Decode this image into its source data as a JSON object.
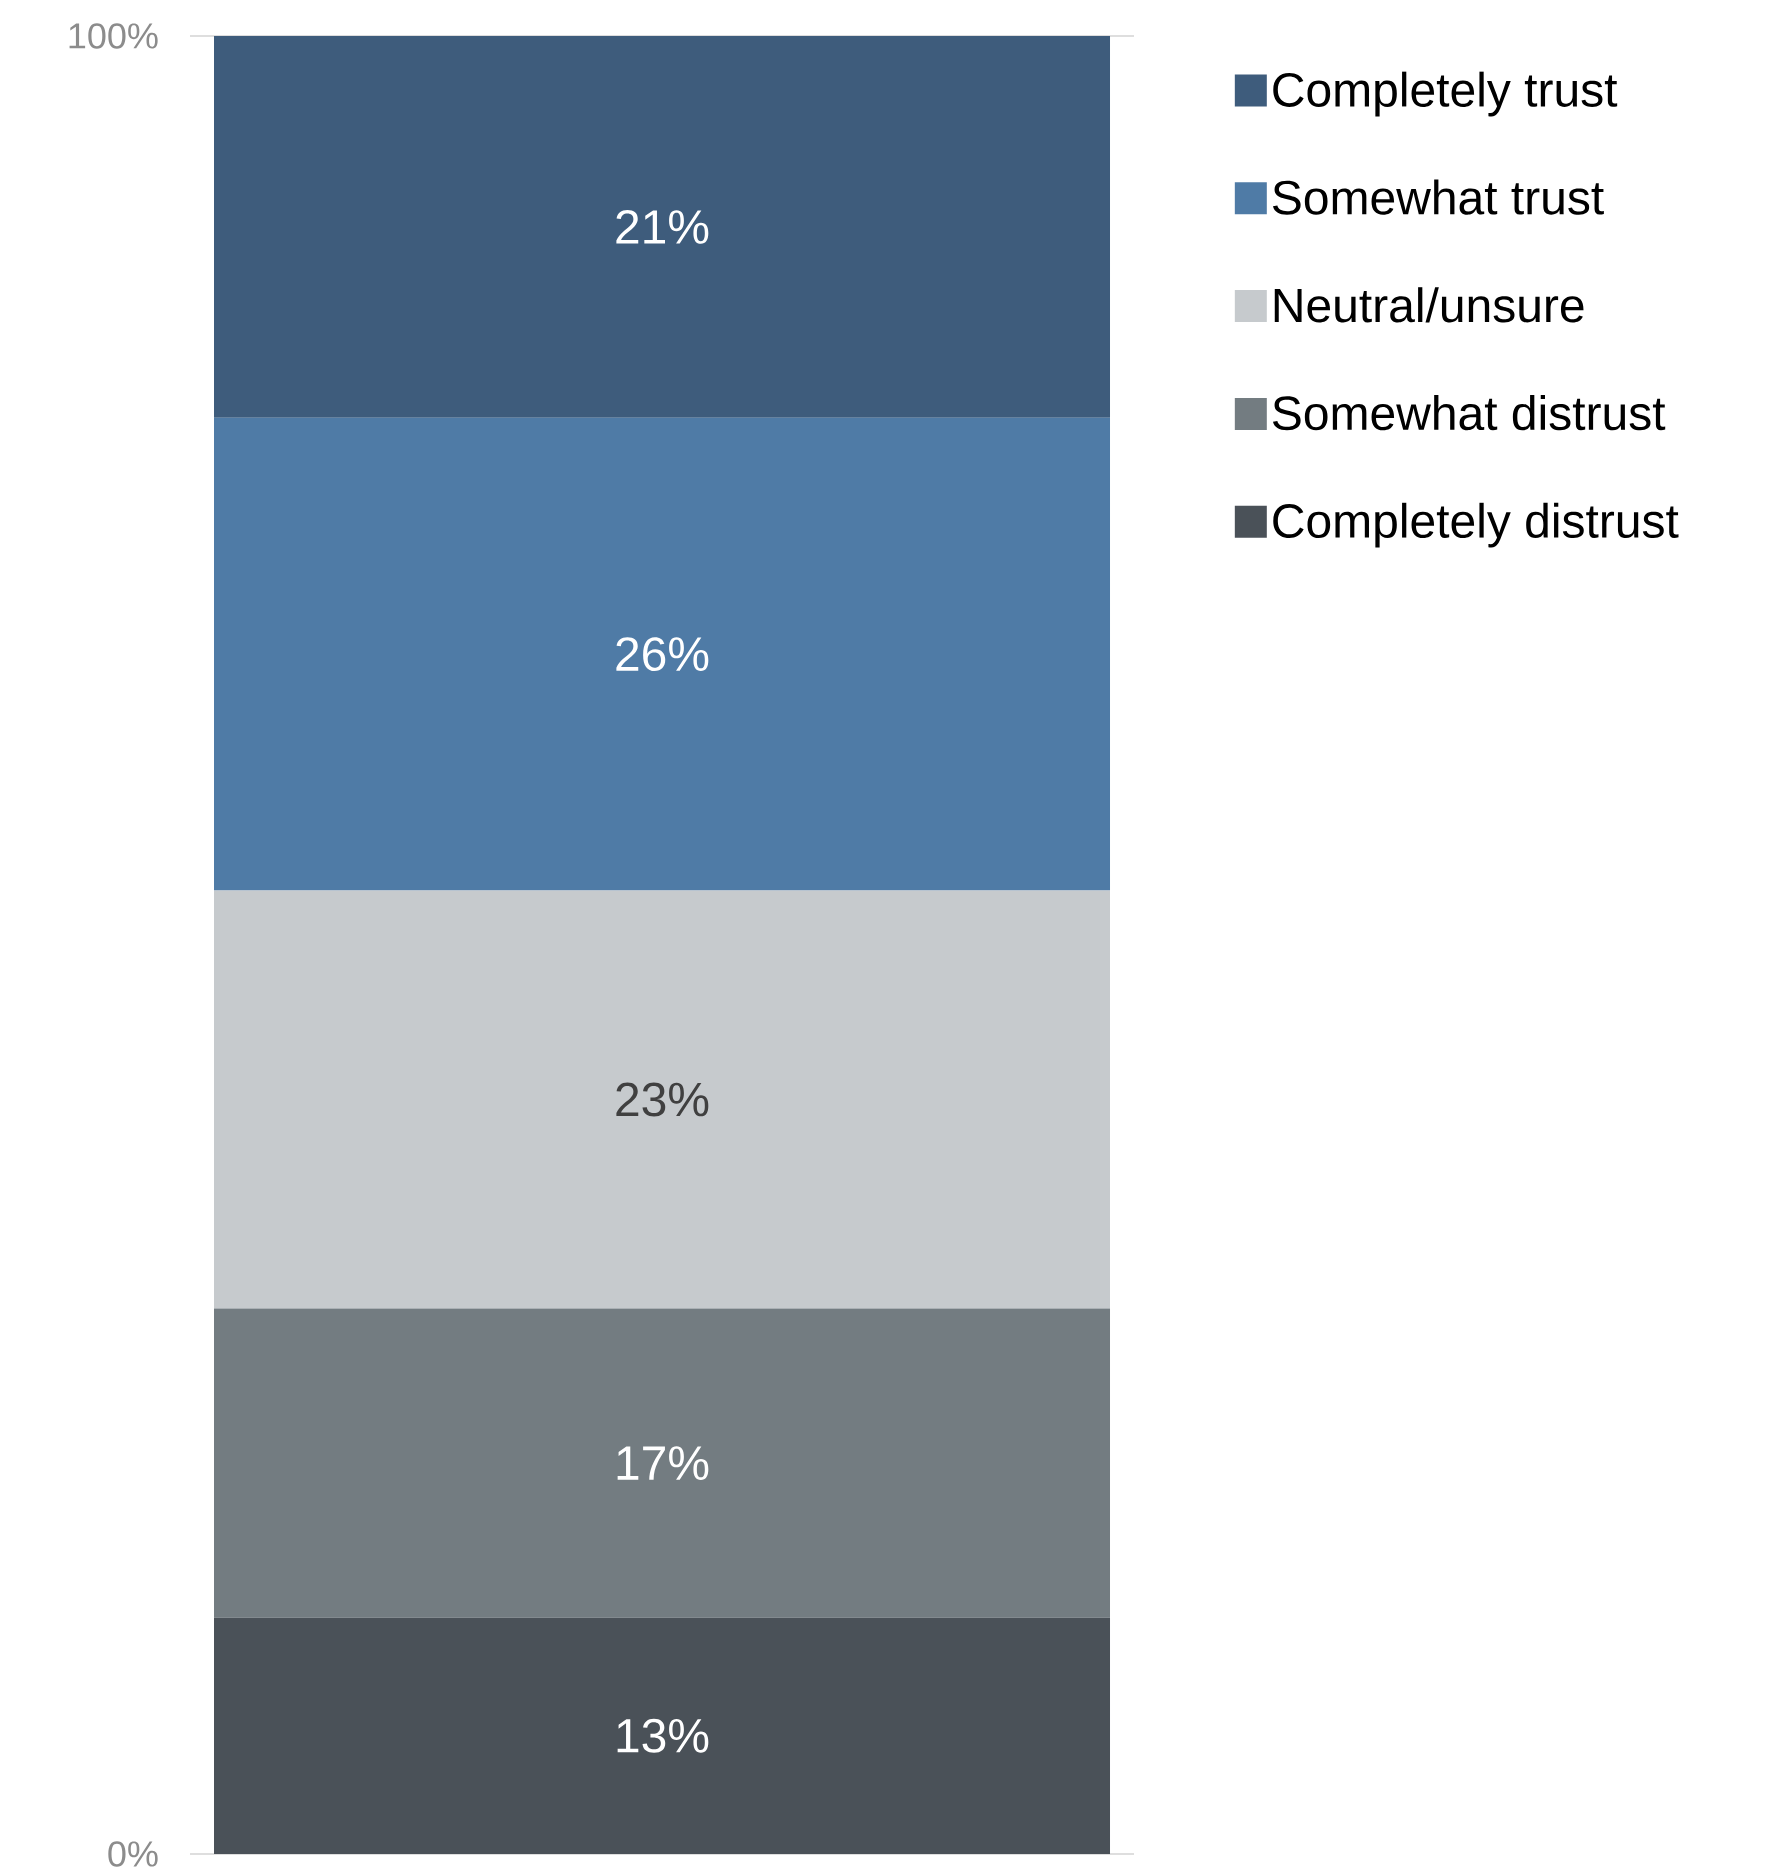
{
  "chart_data": {
    "type": "bar",
    "stacked": true,
    "categories": [
      null
    ],
    "series": [
      {
        "name": "Completely distrust",
        "color": "#4a5158",
        "values": [
          13
        ],
        "value_labels": [
          "13%"
        ]
      },
      {
        "name": "Somewhat distrust",
        "color": "#737c81",
        "values": [
          17
        ],
        "value_labels": [
          "17%"
        ]
      },
      {
        "name": "Neutral/unsure",
        "color": "#c6cacd",
        "values": [
          23
        ],
        "value_labels": [
          "23%"
        ]
      },
      {
        "name": "Somewhat trust",
        "color": "#4f7ba6",
        "values": [
          26
        ],
        "value_labels": [
          "26%"
        ]
      },
      {
        "name": "Completely trust",
        "color": "#3e5c7c",
        "values": [
          21
        ],
        "value_labels": [
          "21%"
        ]
      }
    ],
    "ylim": [
      0,
      100
    ],
    "yticks": [
      {
        "value": 0,
        "label": "0%"
      },
      {
        "value": 100,
        "label": "100%"
      }
    ],
    "grid": "y",
    "legend": "top right"
  }
}
